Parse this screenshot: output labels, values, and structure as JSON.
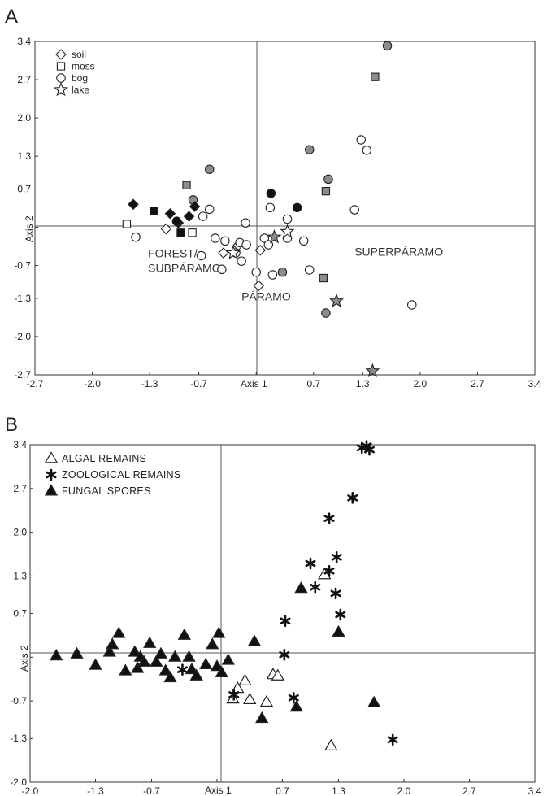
{
  "chart_data": [
    {
      "panel": "A",
      "type": "scatter",
      "xlabel": "Axis 1",
      "ylabel": "Axis 2",
      "xlim": [
        -2.7,
        3.4
      ],
      "ylim": [
        -2.7,
        3.4
      ],
      "x_ticks": [
        "-2.7",
        "-2.0",
        "-1.3",
        "-0.7",
        "-0.0",
        "0.7",
        "1.3",
        "2.0",
        "2.7",
        "3.4"
      ],
      "y_ticks": [
        "3.4",
        "2.7",
        "2.0",
        "1.3",
        "0.7",
        "0.0",
        "-0.7",
        "-1.3",
        "-2.0",
        "-2.7"
      ],
      "x_tick_labels_shown": [
        "-2.7",
        "-2.0",
        "-1.3",
        "-0.7",
        "0.7",
        "1.3",
        "2.0",
        "2.7",
        "3.4"
      ],
      "y_tick_labels_shown": [
        "3.4",
        "2.7",
        "2.0",
        "1.3",
        "0.7",
        "-0.7",
        "-1.3",
        "-2.0",
        "-2.7"
      ],
      "legend": {
        "position": "top-left",
        "entries": [
          {
            "marker": "diamond",
            "label": "soil"
          },
          {
            "marker": "square",
            "label": "moss"
          },
          {
            "marker": "circle",
            "label": "bog"
          },
          {
            "marker": "star",
            "label": "lake"
          }
        ]
      },
      "annotations": [
        {
          "text": "FOREST/",
          "x": -1.32,
          "y": -0.55
        },
        {
          "text": "SUBPÁRAMO",
          "x": -1.32,
          "y": -0.82
        },
        {
          "text": "PÁRAMO",
          "x": -0.18,
          "y": -1.34
        },
        {
          "text": "SUPERPÁRAMO",
          "x": 1.2,
          "y": -0.52
        }
      ],
      "colors": {
        "filled": "#111111",
        "grey": "#8c8c8c",
        "open": "#ffffff",
        "outline": "#222222"
      },
      "points": [
        {
          "marker": "diamond",
          "fill": "filled",
          "x": -1.5,
          "y": 0.42
        },
        {
          "marker": "diamond",
          "fill": "filled",
          "x": -1.05,
          "y": 0.25
        },
        {
          "marker": "diamond",
          "fill": "filled",
          "x": -0.95,
          "y": 0.08
        },
        {
          "marker": "diamond",
          "fill": "filled",
          "x": -0.75,
          "y": 0.38
        },
        {
          "marker": "diamond",
          "fill": "filled",
          "x": -0.82,
          "y": 0.2
        },
        {
          "marker": "diamond",
          "fill": "open",
          "x": -1.1,
          "y": -0.03
        },
        {
          "marker": "diamond",
          "fill": "open",
          "x": -0.4,
          "y": -0.47
        },
        {
          "marker": "diamond",
          "fill": "open",
          "x": -0.22,
          "y": -0.33
        },
        {
          "marker": "diamond",
          "fill": "open",
          "x": 0.05,
          "y": -0.42
        },
        {
          "marker": "diamond",
          "fill": "open",
          "x": 0.03,
          "y": -1.07
        },
        {
          "marker": "square",
          "fill": "filled",
          "x": -1.25,
          "y": 0.3
        },
        {
          "marker": "square",
          "fill": "filled",
          "x": -0.92,
          "y": -0.1
        },
        {
          "marker": "square",
          "fill": "grey",
          "x": -0.85,
          "y": 0.77
        },
        {
          "marker": "square",
          "fill": "grey",
          "x": 0.85,
          "y": 0.66
        },
        {
          "marker": "square",
          "fill": "grey",
          "x": 1.45,
          "y": 2.75
        },
        {
          "marker": "square",
          "fill": "grey",
          "x": 0.82,
          "y": -0.93
        },
        {
          "marker": "square",
          "fill": "open",
          "x": -1.58,
          "y": 0.06
        },
        {
          "marker": "square",
          "fill": "open",
          "x": -0.78,
          "y": -0.1
        },
        {
          "marker": "circle",
          "fill": "filled",
          "x": -0.97,
          "y": 0.11
        },
        {
          "marker": "circle",
          "fill": "filled",
          "x": 0.18,
          "y": 0.62
        },
        {
          "marker": "circle",
          "fill": "filled",
          "x": 0.5,
          "y": 0.36
        },
        {
          "marker": "circle",
          "fill": "grey",
          "x": 1.6,
          "y": 3.32
        },
        {
          "marker": "circle",
          "fill": "grey",
          "x": 0.65,
          "y": 1.42
        },
        {
          "marker": "circle",
          "fill": "grey",
          "x": 0.88,
          "y": 0.88
        },
        {
          "marker": "circle",
          "fill": "grey",
          "x": -0.77,
          "y": 0.5
        },
        {
          "marker": "circle",
          "fill": "grey",
          "x": -0.57,
          "y": 1.06
        },
        {
          "marker": "circle",
          "fill": "grey",
          "x": 0.32,
          "y": -0.82
        },
        {
          "marker": "circle",
          "fill": "grey",
          "x": 0.85,
          "y": -1.57
        },
        {
          "marker": "circle",
          "fill": "open",
          "x": -1.47,
          "y": -0.18
        },
        {
          "marker": "circle",
          "fill": "open",
          "x": -0.65,
          "y": 0.2
        },
        {
          "marker": "circle",
          "fill": "open",
          "x": -0.57,
          "y": 0.33
        },
        {
          "marker": "circle",
          "fill": "open",
          "x": -0.13,
          "y": 0.08
        },
        {
          "marker": "circle",
          "fill": "open",
          "x": -0.5,
          "y": -0.2
        },
        {
          "marker": "circle",
          "fill": "open",
          "x": -0.67,
          "y": -0.52
        },
        {
          "marker": "circle",
          "fill": "open",
          "x": -0.42,
          "y": -0.77
        },
        {
          "marker": "circle",
          "fill": "open",
          "x": -0.38,
          "y": -0.25
        },
        {
          "marker": "circle",
          "fill": "open",
          "x": -0.2,
          "y": -0.28
        },
        {
          "marker": "circle",
          "fill": "open",
          "x": -0.12,
          "y": -0.32
        },
        {
          "marker": "circle",
          "fill": "open",
          "x": -0.25,
          "y": -0.47
        },
        {
          "marker": "circle",
          "fill": "open",
          "x": -0.18,
          "y": -0.62
        },
        {
          "marker": "circle",
          "fill": "open",
          "x": 0.0,
          "y": -0.82
        },
        {
          "marker": "circle",
          "fill": "open",
          "x": 0.1,
          "y": -0.2
        },
        {
          "marker": "circle",
          "fill": "open",
          "x": 0.15,
          "y": -0.32
        },
        {
          "marker": "circle",
          "fill": "open",
          "x": 0.2,
          "y": -0.87
        },
        {
          "marker": "circle",
          "fill": "open",
          "x": 0.17,
          "y": 0.36
        },
        {
          "marker": "circle",
          "fill": "open",
          "x": 0.38,
          "y": 0.15
        },
        {
          "marker": "circle",
          "fill": "open",
          "x": 0.38,
          "y": -0.2
        },
        {
          "marker": "circle",
          "fill": "open",
          "x": 0.58,
          "y": -0.25
        },
        {
          "marker": "circle",
          "fill": "open",
          "x": 0.65,
          "y": -0.78
        },
        {
          "marker": "circle",
          "fill": "open",
          "x": 1.2,
          "y": 0.32
        },
        {
          "marker": "circle",
          "fill": "open",
          "x": 1.28,
          "y": 1.6
        },
        {
          "marker": "circle",
          "fill": "open",
          "x": 1.35,
          "y": 1.41
        },
        {
          "marker": "circle",
          "fill": "open",
          "x": 1.9,
          "y": -1.42
        },
        {
          "marker": "star",
          "fill": "open",
          "x": -0.28,
          "y": -0.47
        },
        {
          "marker": "star",
          "fill": "open",
          "x": 0.38,
          "y": -0.08
        },
        {
          "marker": "star",
          "fill": "grey",
          "x": 0.22,
          "y": -0.18
        },
        {
          "marker": "star",
          "fill": "grey",
          "x": 0.98,
          "y": -1.35
        },
        {
          "marker": "star",
          "fill": "grey",
          "x": 1.42,
          "y": -2.63
        }
      ]
    },
    {
      "panel": "B",
      "type": "scatter",
      "xlabel": "Axis 1",
      "ylabel": "Axis 2",
      "xlim": [
        -2.0,
        3.4
      ],
      "ylim": [
        -2.0,
        3.4
      ],
      "x_ticks": [
        "-2.0",
        "-1.3",
        "-0.7",
        "0.0",
        "0.7",
        "1.3",
        "2.0",
        "2.7",
        "3.4"
      ],
      "y_ticks": [
        "3.4",
        "2.7",
        "2.0",
        "1.3",
        "0.7",
        "0.0",
        "-0.7",
        "-1.3",
        "-2.0"
      ],
      "x_tick_labels_shown": [
        "-2.0",
        "-1.3",
        "-0.7",
        "0.7",
        "1.3",
        "2.0",
        "2.7",
        "3.4"
      ],
      "y_tick_labels_shown": [
        "3.4",
        "2.7",
        "2.0",
        "1.3",
        "0.7",
        "-0.7",
        "-1.3",
        "-2.0"
      ],
      "legend": {
        "position": "top-left",
        "entries": [
          {
            "marker": "triangle-open",
            "label": "ALGAL REMAINS"
          },
          {
            "marker": "asterisk",
            "label": "ZOOLOGICAL REMAINS"
          },
          {
            "marker": "triangle-filled",
            "label": "FUNGAL SPORES"
          }
        ]
      },
      "colors": {
        "filled": "#111111",
        "open": "#ffffff",
        "outline": "#222222"
      },
      "series": [
        {
          "name": "ALGAL REMAINS",
          "marker": "triangle-open",
          "points": [
            {
              "x": 1.15,
              "y": 1.32
            },
            {
              "x": 0.3,
              "y": -0.38
            },
            {
              "x": 0.22,
              "y": -0.5
            },
            {
              "x": 0.17,
              "y": -0.67
            },
            {
              "x": 0.35,
              "y": -0.68
            },
            {
              "x": 0.6,
              "y": -0.28
            },
            {
              "x": 0.65,
              "y": -0.3
            },
            {
              "x": 0.53,
              "y": -0.72
            },
            {
              "x": 1.22,
              "y": -1.42
            }
          ]
        },
        {
          "name": "ZOOLOGICAL REMAINS",
          "marker": "asterisk",
          "points": [
            {
              "x": 1.6,
              "y": 3.38
            },
            {
              "x": 1.63,
              "y": 3.32
            },
            {
              "x": 1.55,
              "y": 3.35
            },
            {
              "x": 1.45,
              "y": 2.55
            },
            {
              "x": 1.2,
              "y": 2.22
            },
            {
              "x": 1.28,
              "y": 1.6
            },
            {
              "x": 1.2,
              "y": 1.38
            },
            {
              "x": 1.0,
              "y": 1.5
            },
            {
              "x": 1.05,
              "y": 1.12
            },
            {
              "x": 1.27,
              "y": 1.02
            },
            {
              "x": 1.32,
              "y": 0.68
            },
            {
              "x": 0.73,
              "y": 0.58
            },
            {
              "x": 0.72,
              "y": 0.04
            },
            {
              "x": -0.37,
              "y": -0.2
            },
            {
              "x": 0.18,
              "y": -0.6
            },
            {
              "x": 0.82,
              "y": -0.65
            },
            {
              "x": 1.88,
              "y": -1.32
            }
          ]
        },
        {
          "name": "FUNGAL SPORES",
          "marker": "triangle-filled",
          "points": [
            {
              "x": -1.72,
              "y": 0.02
            },
            {
              "x": -1.5,
              "y": 0.05
            },
            {
              "x": -1.3,
              "y": -0.13
            },
            {
              "x": -1.15,
              "y": 0.08
            },
            {
              "x": -1.12,
              "y": 0.2
            },
            {
              "x": -1.05,
              "y": 0.38
            },
            {
              "x": -0.98,
              "y": -0.22
            },
            {
              "x": -0.88,
              "y": 0.08
            },
            {
              "x": -0.82,
              "y": 0.0
            },
            {
              "x": -0.78,
              "y": -0.08
            },
            {
              "x": -0.85,
              "y": -0.18
            },
            {
              "x": -0.72,
              "y": 0.22
            },
            {
              "x": -0.65,
              "y": -0.08
            },
            {
              "x": -0.6,
              "y": 0.05
            },
            {
              "x": -0.55,
              "y": -0.22
            },
            {
              "x": -0.5,
              "y": -0.33
            },
            {
              "x": -0.45,
              "y": 0.0
            },
            {
              "x": -0.35,
              "y": 0.35
            },
            {
              "x": -0.3,
              "y": 0.0
            },
            {
              "x": -0.27,
              "y": -0.2
            },
            {
              "x": -0.22,
              "y": -0.3
            },
            {
              "x": -0.12,
              "y": -0.12
            },
            {
              "x": -0.05,
              "y": 0.2
            },
            {
              "x": 0.02,
              "y": 0.38
            },
            {
              "x": 0.0,
              "y": -0.15
            },
            {
              "x": 0.05,
              "y": -0.25
            },
            {
              "x": 0.12,
              "y": -0.05
            },
            {
              "x": 0.4,
              "y": 0.25
            },
            {
              "x": 0.48,
              "y": -0.98
            },
            {
              "x": 0.9,
              "y": 1.1
            },
            {
              "x": 0.85,
              "y": -0.8
            },
            {
              "x": 1.3,
              "y": 0.4
            },
            {
              "x": 1.68,
              "y": -0.73
            }
          ]
        }
      ]
    }
  ]
}
